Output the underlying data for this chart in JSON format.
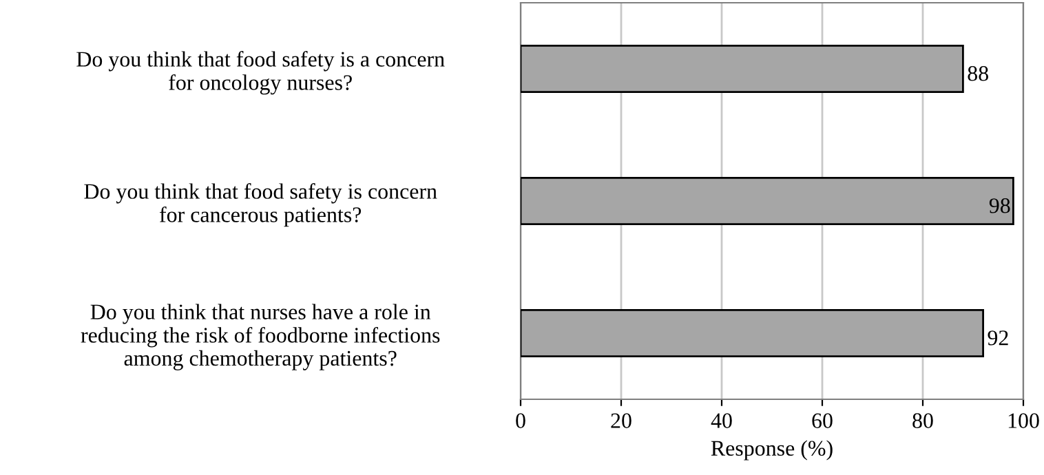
{
  "chart_data": {
    "type": "bar",
    "orientation": "horizontal",
    "categories": [
      "Do you think that food safety is a concern\nfor oncology nurses?",
      "Do you think that food safety is concern\nfor cancerous patients?",
      "Do you think that nurses have a role in\nreducing the risk of foodborne infections\namong chemotherapy patients?"
    ],
    "values": [
      88,
      98,
      92
    ],
    "color": "#a6a6a6",
    "xlim": [
      0,
      100
    ],
    "xticks": [
      0,
      20,
      40,
      60,
      80,
      100
    ],
    "xlabel": "Response (%)",
    "grid": "x",
    "data_labels": true
  }
}
